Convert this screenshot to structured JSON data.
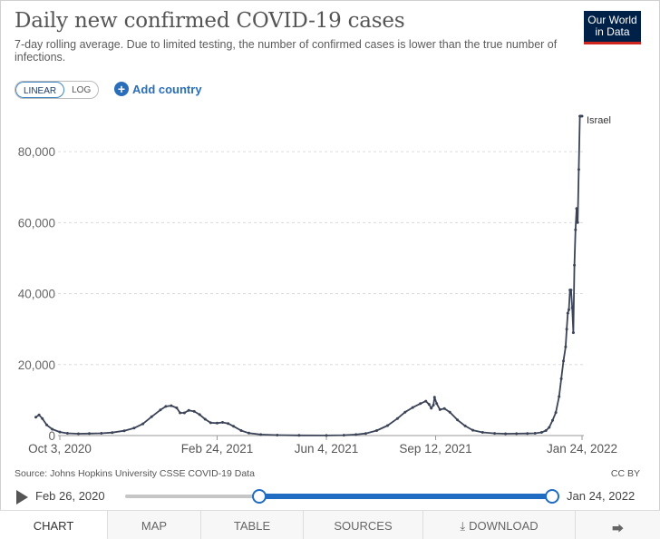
{
  "header": {
    "title": "Daily new confirmed COVID-19 cases",
    "subtitle": "7-day rolling average. Due to limited testing, the number of confirmed cases is lower than the true number of infections.",
    "logo_line1": "Our World",
    "logo_line2": "in Data"
  },
  "controls": {
    "linear_label": "LINEAR",
    "log_label": "LOG",
    "add_country_label": "Add country",
    "active_scale": "linear"
  },
  "chart_data": {
    "type": "line",
    "x_axis_type": "date",
    "ylim": [
      0,
      90000
    ],
    "yticks": [
      0,
      20000,
      40000,
      60000,
      80000
    ],
    "ytick_labels": [
      "0",
      "20,000",
      "40,000",
      "60,000",
      "80,000"
    ],
    "xticks": [
      "2020-10-03",
      "2021-02-24",
      "2021-06-04",
      "2021-09-12",
      "2022-01-24"
    ],
    "xtick_labels": [
      "Oct 3, 2020",
      "Feb 24, 2021",
      "Jun 4, 2021",
      "Sep 12, 2021",
      "Jan 24, 2022"
    ],
    "grid": "horizontal dashed",
    "series": [
      {
        "name": "Israel",
        "color": "#3b4357",
        "points": [
          [
            "2020-09-11",
            5200
          ],
          [
            "2020-09-14",
            5800
          ],
          [
            "2020-09-17",
            4800
          ],
          [
            "2020-09-21",
            3000
          ],
          [
            "2020-09-26",
            1800
          ],
          [
            "2020-10-03",
            1000
          ],
          [
            "2020-10-10",
            650
          ],
          [
            "2020-10-20",
            520
          ],
          [
            "2020-10-30",
            570
          ],
          [
            "2020-11-10",
            650
          ],
          [
            "2020-11-20",
            850
          ],
          [
            "2020-12-01",
            1350
          ],
          [
            "2020-12-10",
            2100
          ],
          [
            "2020-12-18",
            3300
          ],
          [
            "2020-12-26",
            5300
          ],
          [
            "2021-01-03",
            7200
          ],
          [
            "2021-01-08",
            8200
          ],
          [
            "2021-01-13",
            8400
          ],
          [
            "2021-01-18",
            7800
          ],
          [
            "2021-01-21",
            6400
          ],
          [
            "2021-01-25",
            6400
          ],
          [
            "2021-01-29",
            7100
          ],
          [
            "2021-02-03",
            6800
          ],
          [
            "2021-02-08",
            5900
          ],
          [
            "2021-02-13",
            4600
          ],
          [
            "2021-02-18",
            3600
          ],
          [
            "2021-02-24",
            3500
          ],
          [
            "2021-03-01",
            3700
          ],
          [
            "2021-03-06",
            3400
          ],
          [
            "2021-03-11",
            2600
          ],
          [
            "2021-03-18",
            1400
          ],
          [
            "2021-03-25",
            700
          ],
          [
            "2021-04-05",
            280
          ],
          [
            "2021-04-20",
            130
          ],
          [
            "2021-05-10",
            50
          ],
          [
            "2021-06-04",
            20
          ],
          [
            "2021-06-20",
            100
          ],
          [
            "2021-07-01",
            280
          ],
          [
            "2021-07-10",
            600
          ],
          [
            "2021-07-20",
            1400
          ],
          [
            "2021-07-30",
            2800
          ],
          [
            "2021-08-08",
            4800
          ],
          [
            "2021-08-15",
            6600
          ],
          [
            "2021-08-22",
            7900
          ],
          [
            "2021-08-29",
            9000
          ],
          [
            "2021-09-03",
            9700
          ],
          [
            "2021-09-06",
            8800
          ],
          [
            "2021-09-08",
            7700
          ],
          [
            "2021-09-10",
            8600
          ],
          [
            "2021-09-11",
            10800
          ],
          [
            "2021-09-13",
            9000
          ],
          [
            "2021-09-16",
            7300
          ],
          [
            "2021-09-20",
            7600
          ],
          [
            "2021-09-25",
            6600
          ],
          [
            "2021-10-02",
            4400
          ],
          [
            "2021-10-09",
            2700
          ],
          [
            "2021-10-16",
            1500
          ],
          [
            "2021-10-25",
            900
          ],
          [
            "2021-11-05",
            620
          ],
          [
            "2021-11-15",
            520
          ],
          [
            "2021-11-25",
            540
          ],
          [
            "2021-12-05",
            580
          ],
          [
            "2021-12-12",
            650
          ],
          [
            "2021-12-18",
            900
          ],
          [
            "2021-12-22",
            1400
          ],
          [
            "2021-12-25",
            2300
          ],
          [
            "2021-12-28",
            4300
          ],
          [
            "2021-12-31",
            6500
          ],
          [
            "2022-01-03",
            11000
          ],
          [
            "2022-01-05",
            16000
          ],
          [
            "2022-01-07",
            21000
          ],
          [
            "2022-01-09",
            25000
          ],
          [
            "2022-01-10",
            30000
          ],
          [
            "2022-01-11",
            34500
          ],
          [
            "2022-01-12",
            35500
          ],
          [
            "2022-01-13",
            41000
          ],
          [
            "2022-01-14",
            41000
          ],
          [
            "2022-01-15",
            36000
          ],
          [
            "2022-01-16",
            29000
          ],
          [
            "2022-01-17",
            48000
          ],
          [
            "2022-01-18",
            58000
          ],
          [
            "2022-01-19",
            64000
          ],
          [
            "2022-01-20",
            60000
          ],
          [
            "2022-01-21",
            75000
          ],
          [
            "2022-01-22",
            90000
          ],
          [
            "2022-01-23",
            90000
          ],
          [
            "2022-01-24",
            90000
          ]
        ]
      }
    ]
  },
  "footer": {
    "source": "Source: Johns Hopkins University CSSE COVID-19 Data",
    "license": "CC BY"
  },
  "timeline": {
    "start_label": "Feb 26, 2020",
    "end_label": "Jan 24, 2022"
  },
  "tabs": [
    {
      "label": "CHART"
    },
    {
      "label": "MAP"
    },
    {
      "label": "TABLE"
    },
    {
      "label": "SOURCES"
    },
    {
      "label": "DOWNLOAD"
    }
  ]
}
